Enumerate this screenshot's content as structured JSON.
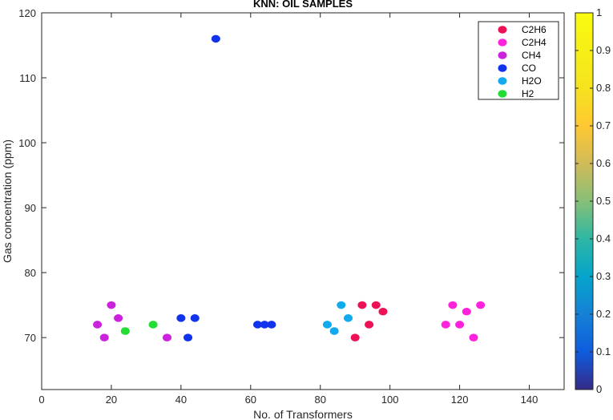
{
  "chart_data": {
    "type": "scatter",
    "title": "KNN: OIL SAMPLES",
    "xlabel": "No. of Transformers",
    "ylabel": "Gas concentration (ppm)",
    "xlim": [
      0,
      150
    ],
    "ylim": [
      62,
      120
    ],
    "xticks": [
      0,
      20,
      40,
      60,
      80,
      100,
      120,
      140
    ],
    "yticks": [
      70,
      80,
      90,
      100,
      110,
      120
    ],
    "grid": false,
    "legend_position": "top-right",
    "series": [
      {
        "name": "C2H6",
        "color": "#ee1155",
        "x": [
          90,
          92,
          94,
          96,
          98
        ],
        "y": [
          70,
          75,
          72,
          75,
          74
        ]
      },
      {
        "name": "C2H4",
        "color": "#ff22dd",
        "x": [
          116,
          118,
          120,
          122,
          124,
          126
        ],
        "y": [
          72,
          75,
          72,
          74,
          70,
          75
        ]
      },
      {
        "name": "CH4",
        "color": "#cc22dd",
        "x": [
          16,
          18,
          20,
          22,
          36
        ],
        "y": [
          72,
          70,
          75,
          73,
          70
        ]
      },
      {
        "name": "CO",
        "color": "#1133ee",
        "x": [
          40,
          42,
          44,
          50,
          62,
          64,
          66
        ],
        "y": [
          73,
          70,
          73,
          116,
          72,
          72,
          72
        ]
      },
      {
        "name": "H2O",
        "color": "#11aaee",
        "x": [
          82,
          84,
          86,
          88
        ],
        "y": [
          72,
          71,
          75,
          73
        ]
      },
      {
        "name": "H2",
        "color": "#22dd33",
        "x": [
          24,
          32
        ],
        "y": [
          71,
          72
        ]
      }
    ],
    "colorbar": {
      "min": 0,
      "max": 1,
      "ticks": [
        "0",
        "0.1",
        "0.2",
        "0.3",
        "0.4",
        "0.5",
        "0.6",
        "0.7",
        "0.8",
        "0.9",
        "1"
      ],
      "colormap": "parula"
    }
  }
}
